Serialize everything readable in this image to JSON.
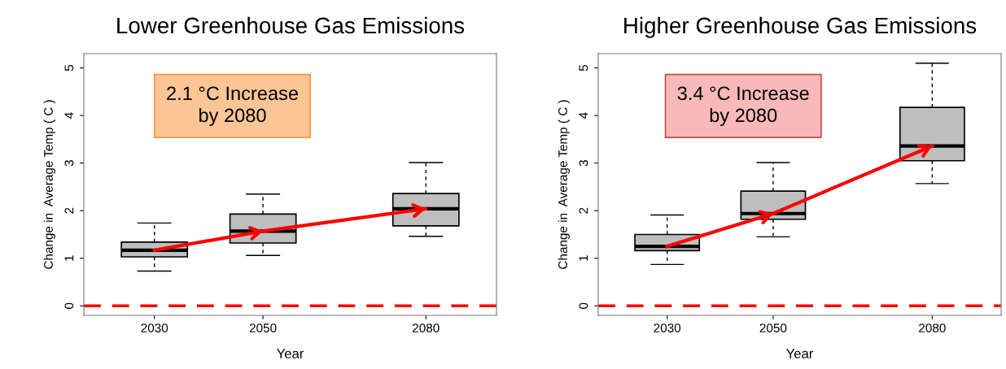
{
  "chart_data": [
    {
      "type": "box",
      "title": "Lower Greenhouse Gas Emissions",
      "xlabel": "Year",
      "ylabel": "Change in  Average Temp ( C )",
      "annotations": [
        "2.1 °C Increase\nby 2080"
      ],
      "x": [
        2030,
        2050,
        2080
      ],
      "xlim": [
        2017,
        2093
      ],
      "xticks": [
        2030,
        2050,
        2080
      ],
      "ylim": [
        -0.2,
        5.3
      ],
      "yticks": [
        0,
        1,
        2,
        3,
        4,
        5
      ],
      "grid": false,
      "series": [
        {
          "color": "#bebebe",
          "boxes": [
            {
              "low": 0.73,
              "q1": 1.03,
              "median": 1.17,
              "q3": 1.34,
              "high": 1.74
            },
            {
              "low": 1.06,
              "q1": 1.32,
              "median": 1.57,
              "q3": 1.93,
              "high": 2.35
            },
            {
              "low": 1.46,
              "q1": 1.68,
              "median": 2.04,
              "q3": 2.36,
              "high": 3.01
            }
          ]
        },
        {
          "type": "line",
          "color": "#ff0000",
          "x": [
            2030,
            2050,
            2080
          ],
          "values": [
            1.17,
            1.57,
            2.04
          ]
        }
      ],
      "ref_lines": [
        {
          "axis": "y",
          "value": 0,
          "color": "#ff0000",
          "line_style": "dashed"
        }
      ]
    },
    {
      "type": "box",
      "title": "Higher Greenhouse Gas Emissions",
      "xlabel": "Year",
      "ylabel": "Change in  Average Temp ( C )",
      "annotations": [
        "3.4 °C Increase\nby 2080"
      ],
      "x": [
        2030,
        2050,
        2080
      ],
      "xlim": [
        2017,
        2093
      ],
      "xticks": [
        2030,
        2050,
        2080
      ],
      "ylim": [
        -0.2,
        5.3
      ],
      "yticks": [
        0,
        1,
        2,
        3,
        4,
        5
      ],
      "grid": false,
      "series": [
        {
          "color": "#bebebe",
          "boxes": [
            {
              "low": 0.87,
              "q1": 1.16,
              "median": 1.25,
              "q3": 1.5,
              "high": 1.91
            },
            {
              "low": 1.45,
              "q1": 1.82,
              "median": 1.94,
              "q3": 2.41,
              "high": 3.01
            },
            {
              "low": 2.57,
              "q1": 3.05,
              "median": 3.36,
              "q3": 4.17,
              "high": 5.1
            }
          ]
        },
        {
          "type": "line",
          "color": "#ff0000",
          "x": [
            2030,
            2050,
            2080
          ],
          "values": [
            1.25,
            1.94,
            3.36
          ]
        }
      ],
      "ref_lines": [
        {
          "axis": "y",
          "value": 0,
          "color": "#ff0000",
          "line_style": "dashed"
        }
      ]
    }
  ]
}
